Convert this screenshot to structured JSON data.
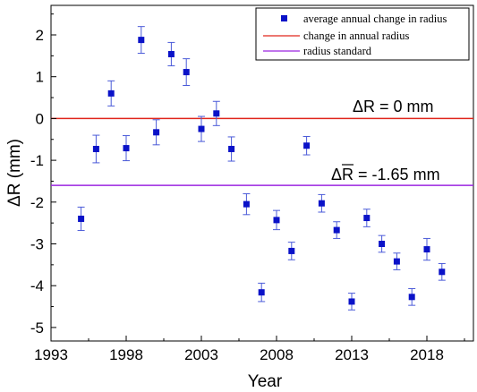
{
  "chart_data": {
    "type": "scatter",
    "xlabel": "Year",
    "ylabel": "ΔR (mm)",
    "xlim": [
      1993,
      2023
    ],
    "ylim": [
      -5.3,
      2.5
    ],
    "xticks": [
      1993,
      1998,
      2003,
      2008,
      2013,
      2018
    ],
    "yticks": [
      2,
      1,
      0,
      -1,
      -2,
      -3,
      -4,
      -5
    ],
    "grid": false,
    "legend_position": "top-right",
    "legend": [
      {
        "label": "average annual change in radius",
        "marker": "square",
        "color": "#0a12c8"
      },
      {
        "label": "change in annual radius",
        "marker": "line",
        "color": "#e0261c"
      },
      {
        "label": "radius standard",
        "marker": "line",
        "color": "#9b24e0"
      }
    ],
    "series": [
      {
        "name": "average annual change in radius",
        "color": "#0a12c8",
        "x": [
          1995,
          1996,
          1997,
          1998,
          1999,
          2000,
          2001,
          2002,
          2003,
          2004,
          2005,
          2006,
          2007,
          2008,
          2009,
          2010,
          2011,
          2012,
          2013,
          2014,
          2015,
          2016,
          2017,
          2018,
          2019
        ],
        "y": [
          -2.4,
          -0.73,
          0.6,
          -0.71,
          1.88,
          -0.33,
          1.54,
          1.11,
          -0.25,
          0.12,
          -0.73,
          -2.05,
          -4.16,
          -2.43,
          -3.17,
          -0.65,
          -2.03,
          -2.67,
          -4.38,
          -2.38,
          -3.0,
          -3.42,
          -4.27,
          -3.13,
          -3.67
        ],
        "err": [
          0.28,
          0.33,
          0.3,
          0.3,
          0.32,
          0.3,
          0.28,
          0.32,
          0.3,
          0.29,
          0.29,
          0.25,
          0.22,
          0.23,
          0.21,
          0.22,
          0.21,
          0.2,
          0.2,
          0.21,
          0.2,
          0.2,
          0.2,
          0.26,
          0.2
        ]
      },
      {
        "name": "change in annual radius",
        "color": "#e0261c",
        "y": 0
      },
      {
        "name": "radius standard",
        "color": "#9b24e0",
        "y": -1.6
      }
    ],
    "annotations": [
      {
        "prefix": "ΔR",
        "text": " = 0 mm",
        "overbar": false
      },
      {
        "prefix": "ΔR",
        "text": " = -1.65 mm",
        "overbar": true
      }
    ]
  }
}
